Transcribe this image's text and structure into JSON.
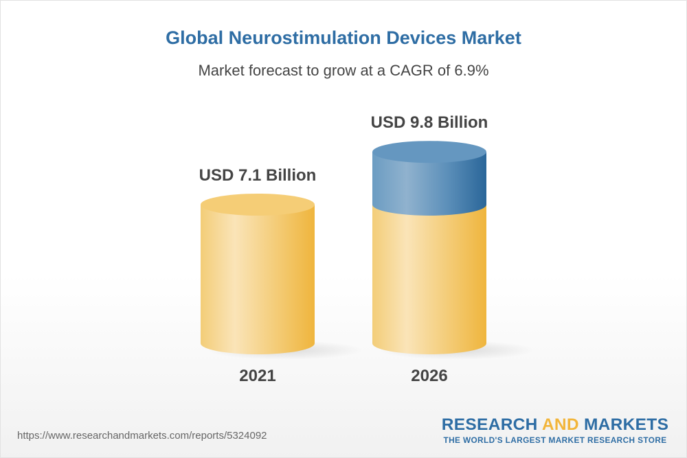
{
  "title": "Global Neurostimulation Devices Market",
  "subtitle": "Market forecast to grow at a CAGR of 6.9%",
  "chart_data": {
    "type": "bar",
    "style": "3d-cylinder",
    "categories": [
      "2021",
      "2026"
    ],
    "values": [
      7.1,
      9.8
    ],
    "data_labels": [
      "USD 7.1 Billion",
      "USD 9.8 Billion"
    ],
    "unit": "USD Billion",
    "cagr": "6.9%",
    "colors": {
      "base": "#f2c45a",
      "growth": "#2e6da4"
    }
  },
  "footer": {
    "url": "https://www.researchandmarkets.com/reports/5324092",
    "logo": {
      "word1": "RESEARCH",
      "word2": "AND",
      "word3": "MARKETS",
      "tagline": "THE WORLD'S LARGEST MARKET RESEARCH STORE"
    }
  }
}
